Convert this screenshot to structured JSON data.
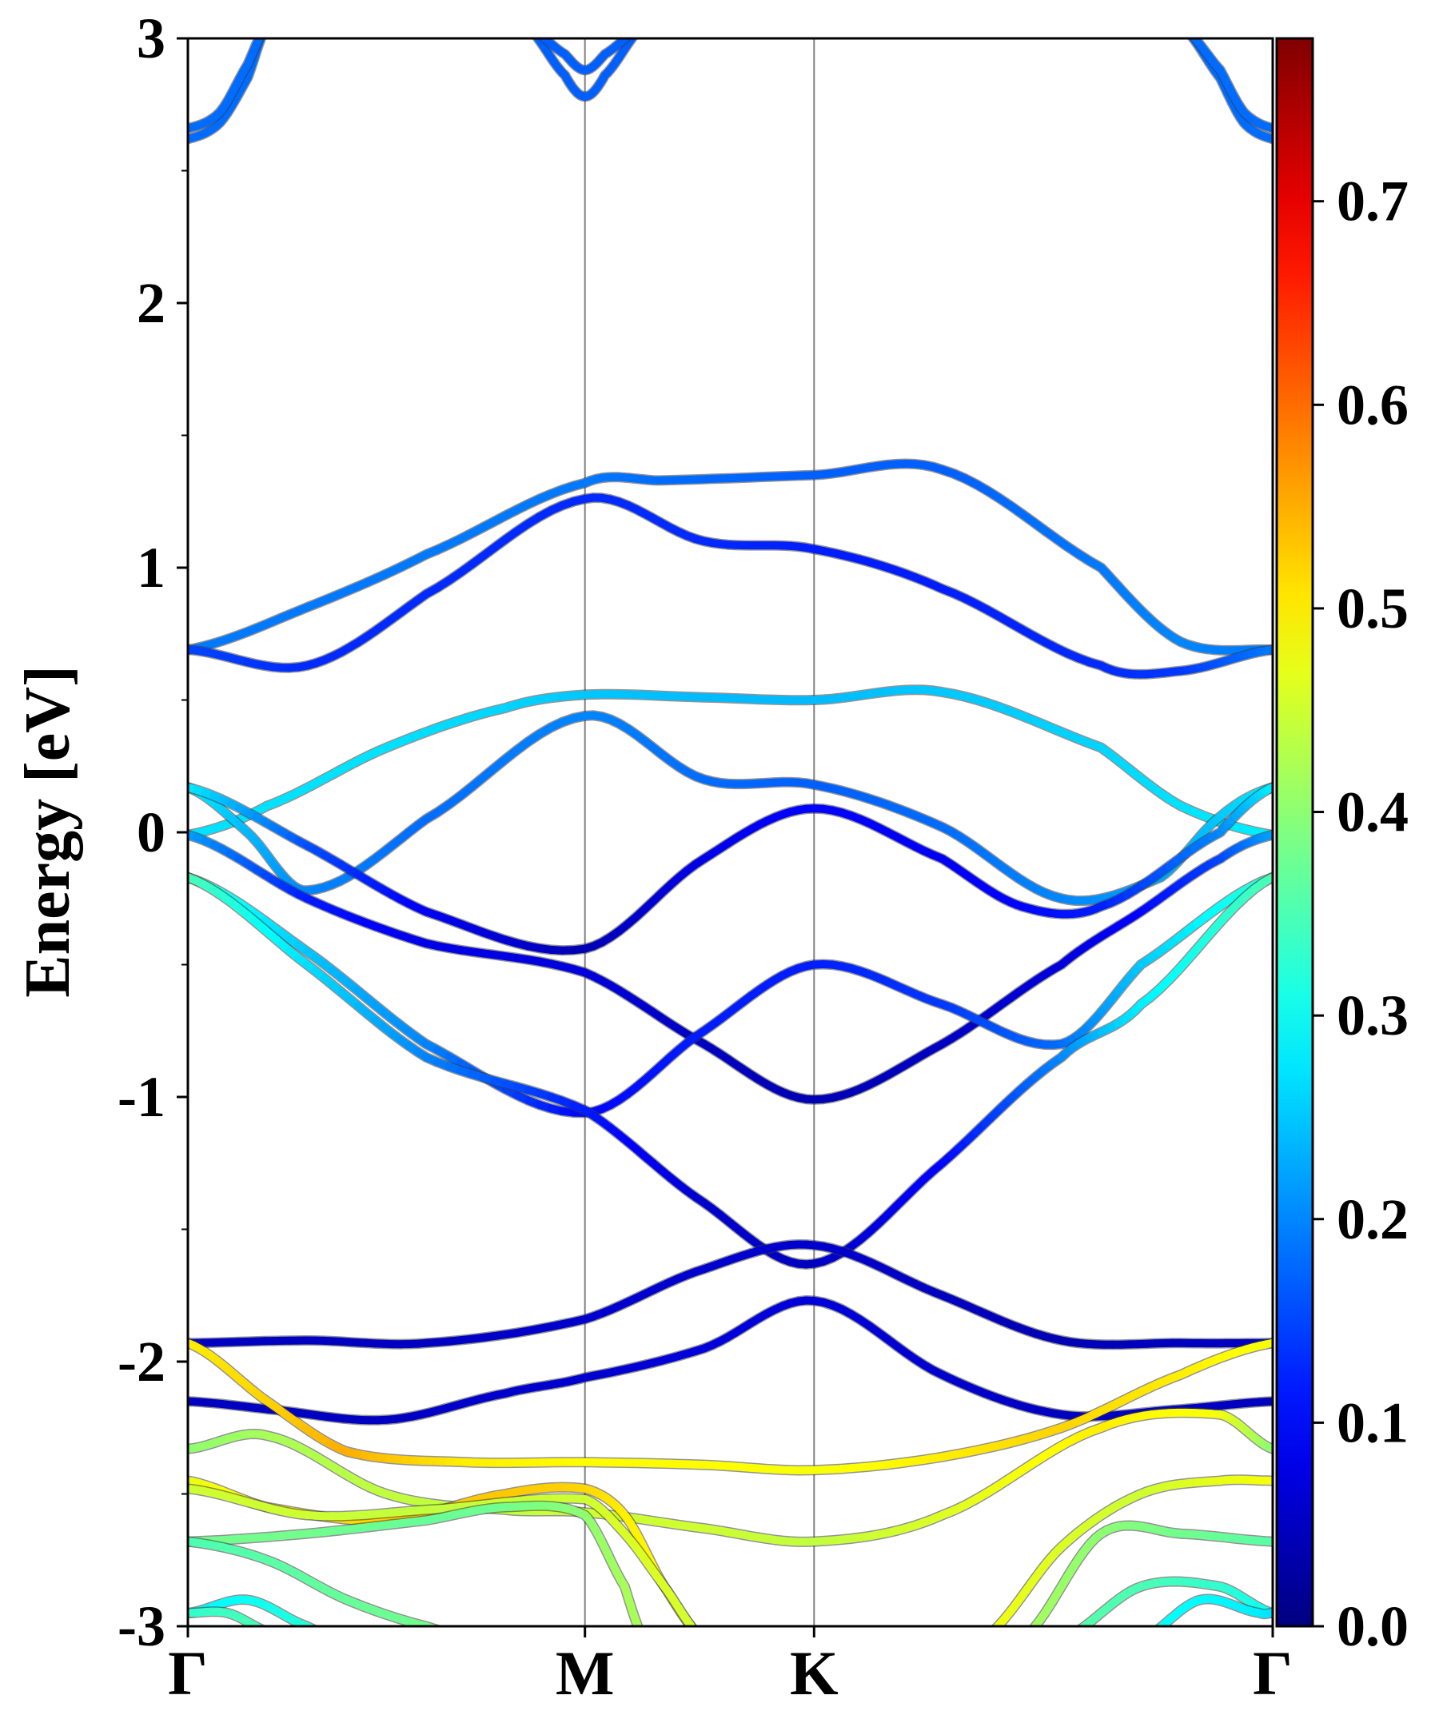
{
  "chart_data": {
    "type": "line",
    "title": "",
    "xlabel": "",
    "ylabel": "Energy [eV]",
    "ylim": [
      -3,
      3
    ],
    "grid": false,
    "high_symmetry_points": [
      {
        "label": "Γ",
        "x": 0.0
      },
      {
        "label": "M",
        "x": 1.0
      },
      {
        "label": "K",
        "x": 1.577
      },
      {
        "label": "Γ",
        "x": 2.732
      }
    ],
    "yticks": [
      "-3",
      "-2",
      "-1",
      "0",
      "1",
      "2",
      "3"
    ],
    "colorbar": {
      "min": 0.0,
      "max": 0.78,
      "colormap": "jet",
      "ticks": [
        "0.0",
        "0.1",
        "0.2",
        "0.3",
        "0.4",
        "0.5",
        "0.6",
        "0.7"
      ]
    },
    "series": [
      {
        "x": [
          0,
          0.3,
          0.6,
          1.0,
          1.2,
          1.577,
          1.9,
          2.3,
          2.5,
          2.732
        ],
        "y": [
          0.69,
          0.85,
          1.05,
          1.32,
          1.33,
          1.35,
          1.37,
          1.0,
          0.72,
          0.69
        ],
        "c": [
          0.19,
          0.19,
          0.19,
          0.19,
          0.18,
          0.17,
          0.17,
          0.19,
          0.2,
          0.19
        ]
      },
      {
        "x": [
          0,
          0.3,
          0.6,
          1.0,
          1.3,
          1.577,
          1.9,
          2.3,
          2.5,
          2.732
        ],
        "y": [
          0.69,
          0.63,
          0.9,
          1.26,
          1.1,
          1.07,
          0.92,
          0.63,
          0.61,
          0.69
        ],
        "c": [
          0.15,
          0.13,
          0.13,
          0.13,
          0.13,
          0.12,
          0.12,
          0.13,
          0.14,
          0.19
        ]
      },
      {
        "x": [
          0,
          0.2,
          0.5,
          0.8,
          1.0,
          1.3,
          1.577,
          1.9,
          2.3,
          2.5,
          2.732
        ],
        "y": [
          -0.01,
          0.1,
          0.32,
          0.47,
          0.52,
          0.51,
          0.5,
          0.53,
          0.32,
          0.1,
          -0.01
        ],
        "c": [
          0.27,
          0.27,
          0.27,
          0.26,
          0.25,
          0.24,
          0.24,
          0.25,
          0.26,
          0.27,
          0.28
        ]
      },
      {
        "x": [
          0,
          0.15,
          0.3,
          0.6,
          1.0,
          1.3,
          1.577,
          1.9,
          2.2,
          2.45,
          2.6,
          2.732
        ],
        "y": [
          0.17,
          0.0,
          -0.22,
          0.05,
          0.44,
          0.2,
          0.18,
          0.02,
          -0.25,
          -0.17,
          0.06,
          0.17
        ],
        "c": [
          0.28,
          0.24,
          0.2,
          0.18,
          0.2,
          0.18,
          0.17,
          0.18,
          0.2,
          0.22,
          0.25,
          0.28
        ]
      },
      {
        "x": [
          0,
          0.3,
          0.6,
          1.0,
          1.3,
          1.577,
          1.9,
          2.1,
          2.3,
          2.6,
          2.732
        ],
        "y": [
          0.17,
          -0.05,
          -0.3,
          -0.44,
          -0.1,
          0.09,
          -0.1,
          -0.28,
          -0.28,
          0.0,
          0.17
        ],
        "c": [
          0.28,
          0.16,
          0.09,
          0.04,
          0.08,
          0.1,
          0.09,
          0.1,
          0.12,
          0.2,
          0.28
        ]
      },
      {
        "x": [
          0,
          0.3,
          0.6,
          1.0,
          1.3,
          1.577,
          1.9,
          2.2,
          2.4,
          2.6,
          2.732
        ],
        "y": [
          -0.01,
          -0.25,
          -0.42,
          -0.53,
          -0.8,
          -1.01,
          -0.8,
          -0.5,
          -0.3,
          -0.1,
          -0.01
        ],
        "c": [
          0.22,
          0.12,
          0.08,
          0.07,
          0.05,
          0.04,
          0.05,
          0.07,
          0.1,
          0.15,
          0.22
        ]
      },
      {
        "x": [
          0,
          0.3,
          0.6,
          1.0,
          1.3,
          1.577,
          1.9,
          2.2,
          2.4,
          2.732
        ],
        "y": [
          -0.17,
          -0.45,
          -0.8,
          -1.06,
          -0.75,
          -0.5,
          -0.65,
          -0.8,
          -0.5,
          -0.17
        ],
        "c": [
          0.33,
          0.25,
          0.2,
          0.1,
          0.12,
          0.12,
          0.14,
          0.18,
          0.25,
          0.33
        ]
      },
      {
        "x": [
          0,
          0.3,
          0.6,
          1.0,
          1.3,
          1.577,
          1.9,
          2.2,
          2.4,
          2.732
        ],
        "y": [
          -0.17,
          -0.5,
          -0.85,
          -1.05,
          -1.4,
          -1.63,
          -1.25,
          -0.85,
          -0.65,
          -0.17
        ],
        "c": [
          0.35,
          0.27,
          0.2,
          0.12,
          0.06,
          0.05,
          0.1,
          0.2,
          0.28,
          0.35
        ]
      },
      {
        "x": [
          0,
          0.3,
          0.6,
          1.0,
          1.3,
          1.577,
          1.9,
          2.2,
          2.5,
          2.732
        ],
        "y": [
          -1.93,
          -1.92,
          -1.93,
          -1.84,
          -1.65,
          -1.56,
          -1.75,
          -1.92,
          -1.93,
          -1.93
        ],
        "c": [
          0.05,
          0.05,
          0.05,
          0.06,
          0.06,
          0.06,
          0.05,
          0.04,
          0.05,
          0.05
        ]
      },
      {
        "x": [
          0,
          0.2,
          0.5,
          0.8,
          1.0,
          1.3,
          1.577,
          1.9,
          2.2,
          2.5,
          2.732
        ],
        "y": [
          -2.15,
          -2.18,
          -2.22,
          -2.12,
          -2.06,
          -1.95,
          -1.77,
          -2.05,
          -2.2,
          -2.18,
          -2.15
        ],
        "c": [
          0.05,
          0.05,
          0.05,
          0.06,
          0.06,
          0.07,
          0.07,
          0.06,
          0.05,
          0.05,
          0.05
        ]
      },
      {
        "x": [
          0,
          0.2,
          0.4,
          0.7,
          1.0,
          1.3,
          1.577,
          1.9,
          2.2,
          2.5,
          2.732
        ],
        "y": [
          -1.93,
          -2.15,
          -2.34,
          -2.38,
          -2.38,
          -2.39,
          -2.41,
          -2.36,
          -2.25,
          -2.05,
          -1.93
        ],
        "c": [
          0.5,
          0.52,
          0.55,
          0.5,
          0.49,
          0.49,
          0.48,
          0.5,
          0.52,
          0.5,
          0.48
        ]
      },
      {
        "x": [
          0,
          0.2,
          0.5,
          0.8,
          1.0,
          1.3,
          1.577,
          1.9,
          2.3,
          2.6,
          2.732
        ],
        "y": [
          -2.33,
          -2.28,
          -2.5,
          -2.56,
          -2.57,
          -2.63,
          -2.68,
          -2.58,
          -2.25,
          -2.2,
          -2.33
        ],
        "c": [
          0.4,
          0.42,
          0.44,
          0.44,
          0.45,
          0.45,
          0.44,
          0.46,
          0.5,
          0.48,
          0.4
        ]
      },
      {
        "x": [
          0,
          0.2,
          0.5,
          0.8,
          1.0,
          1.1,
          1.2,
          1.3
        ],
        "y": [
          -2.45,
          -2.55,
          -2.6,
          -2.5,
          -2.48,
          -2.58,
          -2.85,
          -3.05
        ],
        "c": [
          0.47,
          0.5,
          0.52,
          0.53,
          0.52,
          0.5,
          0.49,
          0.48
        ]
      },
      {
        "x": [
          0,
          0.3,
          0.6,
          1.0,
          1.1,
          1.2,
          1.3
        ],
        "y": [
          -2.48,
          -2.58,
          -2.56,
          -2.52,
          -2.65,
          -2.85,
          -3.05
        ],
        "c": [
          0.45,
          0.45,
          0.44,
          0.45,
          0.46,
          0.46,
          0.45
        ]
      },
      {
        "x": [
          0,
          0.3,
          0.6,
          0.8,
          1.0,
          1.1,
          1.15
        ],
        "y": [
          -2.68,
          -2.65,
          -2.6,
          -2.55,
          -2.58,
          -2.85,
          -3.05
        ],
        "c": [
          0.38,
          0.38,
          0.37,
          0.38,
          0.4,
          0.42,
          0.42
        ]
      },
      {
        "x": [
          0,
          0.2,
          0.4,
          0.6,
          0.75
        ],
        "y": [
          -2.68,
          -2.75,
          -2.9,
          -3.0,
          -3.05
        ],
        "c": [
          0.35,
          0.36,
          0.37,
          0.38,
          0.38
        ]
      },
      {
        "x": [
          0,
          0.15,
          0.3,
          0.4
        ],
        "y": [
          -2.95,
          -2.9,
          -3.0,
          -3.05
        ],
        "c": [
          0.28,
          0.3,
          0.32,
          0.33
        ]
      },
      {
        "x": [
          0,
          0.1,
          0.2,
          0.4
        ],
        "y": [
          -2.95,
          -2.95,
          -3.02,
          -3.05
        ],
        "c": [
          0.33,
          0.34,
          0.35,
          0.36
        ]
      },
      {
        "x": [
          2.0,
          2.2,
          2.4,
          2.6,
          2.732
        ],
        "y": [
          -3.05,
          -2.7,
          -2.5,
          -2.45,
          -2.45
        ],
        "c": [
          0.48,
          0.46,
          0.45,
          0.47,
          0.48
        ]
      },
      {
        "x": [
          2.1,
          2.3,
          2.5,
          2.732
        ],
        "y": [
          -3.05,
          -2.65,
          -2.65,
          -2.68
        ],
        "c": [
          0.42,
          0.4,
          0.38,
          0.36
        ]
      },
      {
        "x": [
          2.2,
          2.4,
          2.6,
          2.732
        ],
        "y": [
          -3.05,
          -2.85,
          -2.85,
          -2.95
        ],
        "c": [
          0.36,
          0.35,
          0.33,
          0.3
        ]
      },
      {
        "x": [
          2.4,
          2.55,
          2.7,
          2.732
        ],
        "y": [
          -3.05,
          -2.9,
          -2.95,
          -2.95
        ],
        "c": [
          0.3,
          0.29,
          0.28,
          0.27
        ]
      },
      {
        "x": [
          0,
          0.08,
          0.15,
          0.2
        ],
        "y": [
          2.62,
          2.68,
          2.85,
          3.05
        ],
        "c": [
          0.18,
          0.18,
          0.18,
          0.18
        ]
      },
      {
        "x": [
          0,
          0.08,
          0.15,
          0.2
        ],
        "y": [
          2.66,
          2.72,
          2.9,
          3.05
        ],
        "c": [
          0.18,
          0.18,
          0.18,
          0.18
        ]
      },
      {
        "x": [
          0.85,
          0.95,
          1.0,
          1.05,
          1.15
        ],
        "y": [
          3.05,
          2.86,
          2.78,
          2.86,
          3.05
        ],
        "c": [
          0.17,
          0.17,
          0.17,
          0.17,
          0.17
        ]
      },
      {
        "x": [
          0.85,
          0.95,
          1.0,
          1.05,
          1.15
        ],
        "y": [
          3.05,
          2.94,
          2.88,
          2.94,
          3.05
        ],
        "c": [
          0.17,
          0.17,
          0.17,
          0.17,
          0.17
        ]
      },
      {
        "x": [
          2.5,
          2.6,
          2.66,
          2.732
        ],
        "y": [
          3.05,
          2.85,
          2.68,
          2.62
        ],
        "c": [
          0.18,
          0.18,
          0.18,
          0.18
        ]
      },
      {
        "x": [
          2.5,
          2.6,
          2.66,
          2.732
        ],
        "y": [
          3.05,
          2.88,
          2.72,
          2.66
        ],
        "c": [
          0.18,
          0.18,
          0.18,
          0.18
        ]
      }
    ]
  }
}
